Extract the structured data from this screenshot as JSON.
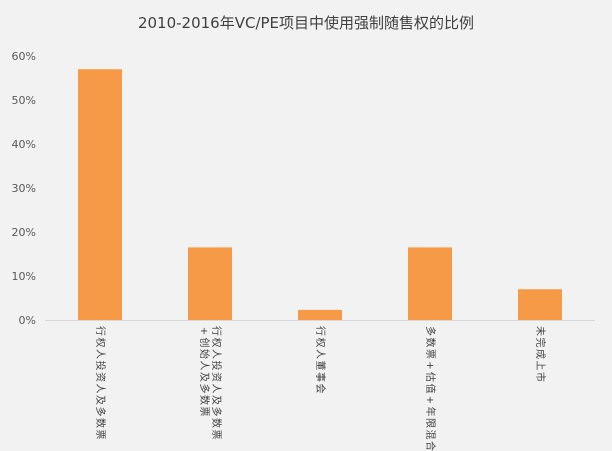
{
  "chart_data": {
    "type": "bar",
    "title": "2010-2016年VC/PE项目中使用强制随售权的比例",
    "categories": [
      [
        "行权人投资人及多数票"
      ],
      [
        "行权人投资人及多数票",
        "+创始人及多数票"
      ],
      [
        "行权人董事会"
      ],
      [
        "多数票+估值+年限混合"
      ],
      [
        "未完成上市"
      ]
    ],
    "category_labels": [
      "行权人投资人及多数票",
      "行权人投资人及多数票+创始人及多数票",
      "行权人董事会",
      "多数票+估值+年限混合",
      "未完成上市"
    ],
    "values": [
      57,
      16.5,
      2.3,
      16.5,
      7
    ],
    "unit": "%",
    "ylim": [
      0,
      60
    ],
    "yticks": [
      "0%",
      "10%",
      "20%",
      "30%",
      "40%",
      "50%",
      "60%"
    ],
    "xlabel": "",
    "ylabel": "",
    "bar_color": "#f79a48",
    "grid": false,
    "legend": "none"
  }
}
